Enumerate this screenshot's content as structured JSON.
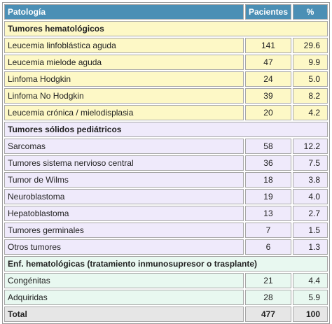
{
  "header": {
    "columns": [
      "Patología",
      "Pacientes",
      "%"
    ]
  },
  "sections": [
    {
      "title": "Tumores hematológicos",
      "rows": [
        [
          "Leucemia linfoblástica aguda",
          141,
          "29.6"
        ],
        [
          "Leucemia mielode aguda",
          47,
          "9.9"
        ],
        [
          "Linfoma Hodgkin",
          24,
          "5.0"
        ],
        [
          "Linfoma No Hodgkin",
          39,
          "8.2"
        ],
        [
          "Leucemia crónica / mielodisplasia",
          20,
          "4.2"
        ]
      ]
    },
    {
      "title": "Tumores sólidos pediátricos",
      "rows": [
        [
          "Sarcomas",
          58,
          "12.2"
        ],
        [
          "Tumores sistema nervioso central",
          36,
          "7.5"
        ],
        [
          "Tumor de Wilms",
          18,
          "3.8"
        ],
        [
          "Neuroblastoma",
          19,
          "4.0"
        ],
        [
          "Hepatoblastoma",
          13,
          "2.7"
        ],
        [
          "Tumores germinales",
          7,
          "1.5"
        ],
        [
          "Otros tumores",
          6,
          "1.3"
        ]
      ]
    },
    {
      "title": "Enf. hematológicas (tratamiento inmunosupresor o trasplante)",
      "rows": [
        [
          "Congénitas",
          21,
          "4.4"
        ],
        [
          "Adquiridas",
          28,
          "5.9"
        ]
      ]
    }
  ],
  "total": [
    "Total",
    477,
    "100"
  ]
}
